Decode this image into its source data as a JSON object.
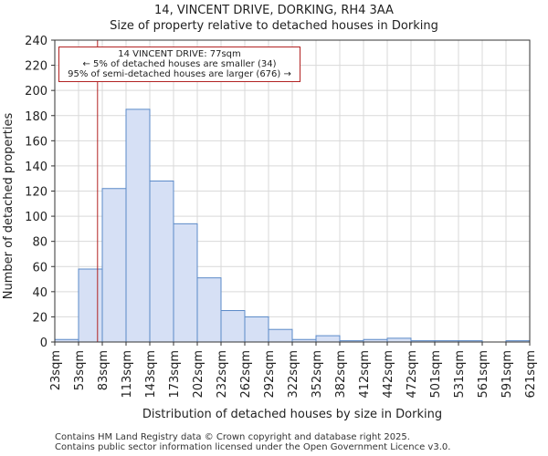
{
  "chart_data": {
    "type": "bar",
    "title": "14, VINCENT DRIVE, DORKING, RH4 3AA",
    "subtitle": "Size of property relative to detached houses in Dorking",
    "xlabel": "Distribution of detached houses by size in Dorking",
    "ylabel": "Number of detached properties",
    "ylim": [
      0,
      240
    ],
    "yticks": [
      0,
      20,
      40,
      60,
      80,
      100,
      120,
      140,
      160,
      180,
      200,
      220,
      240
    ],
    "xticks": [
      "23sqm",
      "53sqm",
      "83sqm",
      "113sqm",
      "143sqm",
      "173sqm",
      "202sqm",
      "232sqm",
      "262sqm",
      "292sqm",
      "322sqm",
      "352sqm",
      "382sqm",
      "412sqm",
      "442sqm",
      "472sqm",
      "501sqm",
      "531sqm",
      "561sqm",
      "591sqm",
      "621sqm"
    ],
    "values": [
      2,
      58,
      122,
      185,
      128,
      94,
      51,
      25,
      20,
      10,
      2,
      5,
      1,
      2,
      3,
      1,
      1,
      1,
      0,
      1
    ],
    "bar_color": "#d6e0f5",
    "bar_edge_color": "#5b8ac8",
    "marker": {
      "value": 77,
      "color": "#b22222"
    },
    "annotation": {
      "line1": "14 VINCENT DRIVE: 77sqm",
      "line2": "← 5% of detached houses are smaller (34)",
      "line3": "95% of semi-detached houses are larger (676) →"
    }
  },
  "footer": {
    "line1": "Contains HM Land Registry data © Crown copyright and database right 2025.",
    "line2": "Contains public sector information licensed under the Open Government Licence v3.0."
  }
}
